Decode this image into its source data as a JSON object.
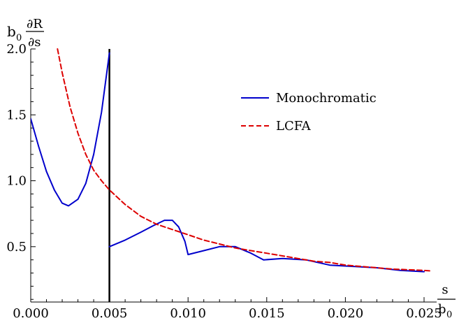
{
  "chart_data": {
    "type": "line",
    "title": "",
    "xlabel": {
      "numerator": "s",
      "denominator": "b",
      "denominator_sub": "0"
    },
    "ylabel": {
      "prefix": "b",
      "prefix_sub": "0",
      "numerator": "∂R",
      "denominator": "∂s"
    },
    "xlim": [
      0,
      0.0258
    ],
    "ylim": [
      0.08,
      2.0
    ],
    "x_ticks": [
      {
        "value": 0.0,
        "label": "0.000"
      },
      {
        "value": 0.005,
        "label": "0.005"
      },
      {
        "value": 0.01,
        "label": "0.010"
      },
      {
        "value": 0.015,
        "label": "0.015"
      },
      {
        "value": 0.02,
        "label": "0.020"
      },
      {
        "value": 0.025,
        "label": "0.025"
      }
    ],
    "y_ticks": [
      {
        "value": 0.5,
        "label": "0.5"
      },
      {
        "value": 1.0,
        "label": "1.0"
      },
      {
        "value": 1.5,
        "label": "1.5"
      },
      {
        "value": 2.0,
        "label": "2.0"
      }
    ],
    "vertical_line": {
      "x": 0.005,
      "color": "#000000"
    },
    "legend": {
      "position": "top-right"
    },
    "series": [
      {
        "name": "Monochromatic",
        "color": "#0000cc",
        "dash": "solid",
        "segments": [
          [
            [
              0.0,
              1.47
            ],
            [
              0.0005,
              1.26
            ],
            [
              0.001,
              1.07
            ],
            [
              0.0015,
              0.93
            ],
            [
              0.002,
              0.83
            ],
            [
              0.0024,
              0.81
            ],
            [
              0.003,
              0.86
            ],
            [
              0.0035,
              0.98
            ],
            [
              0.004,
              1.2
            ],
            [
              0.0045,
              1.52
            ],
            [
              0.005,
              1.97
            ]
          ],
          [
            [
              0.005,
              0.5
            ],
            [
              0.006,
              0.55
            ],
            [
              0.007,
              0.61
            ],
            [
              0.0078,
              0.66
            ],
            [
              0.0085,
              0.7
            ],
            [
              0.009,
              0.7
            ],
            [
              0.0094,
              0.65
            ],
            [
              0.0098,
              0.54
            ],
            [
              0.01,
              0.44
            ],
            [
              0.011,
              0.47
            ],
            [
              0.012,
              0.5
            ],
            [
              0.013,
              0.5
            ],
            [
              0.014,
              0.45
            ],
            [
              0.0148,
              0.4
            ],
            [
              0.016,
              0.41
            ],
            [
              0.0175,
              0.4
            ],
            [
              0.019,
              0.36
            ],
            [
              0.0205,
              0.35
            ],
            [
              0.022,
              0.34
            ],
            [
              0.0235,
              0.32
            ],
            [
              0.025,
              0.31
            ]
          ]
        ]
      },
      {
        "name": "LCFA",
        "color": "#dd0000",
        "dash": "dashed",
        "segments": [
          [
            [
              0.0017,
              2.0
            ],
            [
              0.002,
              1.82
            ],
            [
              0.0025,
              1.56
            ],
            [
              0.003,
              1.36
            ],
            [
              0.0035,
              1.2
            ],
            [
              0.004,
              1.08
            ],
            [
              0.0045,
              1.0
            ],
            [
              0.005,
              0.93
            ],
            [
              0.006,
              0.82
            ],
            [
              0.007,
              0.73
            ],
            [
              0.008,
              0.67
            ],
            [
              0.009,
              0.63
            ],
            [
              0.01,
              0.59
            ],
            [
              0.011,
              0.55
            ],
            [
              0.012,
              0.52
            ],
            [
              0.013,
              0.49
            ],
            [
              0.014,
              0.47
            ],
            [
              0.015,
              0.45
            ],
            [
              0.016,
              0.43
            ],
            [
              0.017,
              0.41
            ],
            [
              0.018,
              0.39
            ],
            [
              0.019,
              0.38
            ],
            [
              0.02,
              0.36
            ],
            [
              0.021,
              0.35
            ],
            [
              0.022,
              0.34
            ],
            [
              0.023,
              0.33
            ],
            [
              0.024,
              0.325
            ],
            [
              0.025,
              0.32
            ],
            [
              0.0255,
              0.315
            ]
          ]
        ]
      }
    ]
  }
}
